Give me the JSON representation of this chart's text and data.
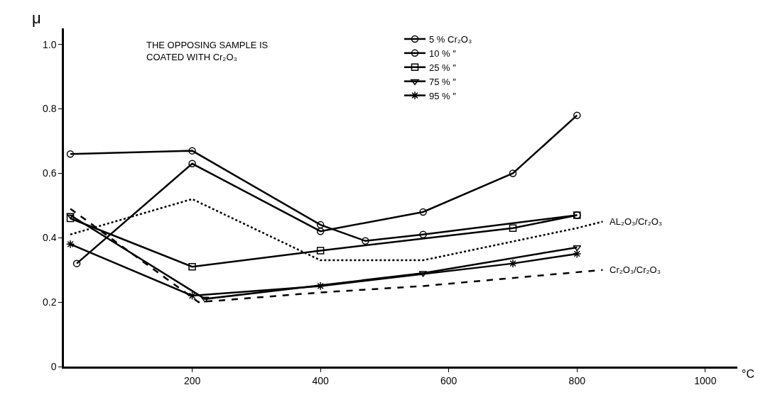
{
  "chart_data": {
    "type": "line",
    "xlabel": "°C",
    "ylabel": "μ",
    "annotations": [
      "THE OPPOSING SAMPLE IS\nCOATED WITH Cr₂O₃"
    ],
    "xlim": [
      0,
      1050
    ],
    "ylim": [
      0,
      1.05
    ],
    "xticks": [
      200,
      400,
      600,
      800,
      1000
    ],
    "yticks": [
      0,
      0.2,
      0.4,
      0.6,
      0.8,
      {
        "value": 1.0,
        "label": "1.0"
      }
    ],
    "legend": "top",
    "line_style": "solid",
    "series": [
      {
        "name": "5 % Cr₂O₃",
        "color": "#000000",
        "marker": "circle",
        "x": [
          20,
          200,
          400,
          560,
          700,
          800
        ],
        "values": [
          0.32,
          0.63,
          0.42,
          0.48,
          0.6,
          0.78
        ]
      },
      {
        "name": "10 % ″",
        "color": "#000000",
        "marker": "circle",
        "x": [
          10,
          200,
          400,
          470,
          560,
          800
        ],
        "values": [
          0.66,
          0.67,
          0.44,
          0.39,
          0.41,
          0.47
        ]
      },
      {
        "name": "25 % ″",
        "color": "#000000",
        "marker": "square",
        "x": [
          10,
          200,
          400,
          700,
          800
        ],
        "values": [
          0.46,
          0.31,
          0.36,
          0.43,
          0.47
        ]
      },
      {
        "name": "75 % ″",
        "color": "#000000",
        "marker": "triangle",
        "x": [
          10,
          220,
          560,
          800
        ],
        "values": [
          0.47,
          0.21,
          0.29,
          0.37
        ]
      },
      {
        "name": "95 % ″",
        "color": "#000000",
        "marker": "cross",
        "x": [
          10,
          200,
          400,
          700,
          800
        ],
        "values": [
          0.38,
          0.22,
          0.25,
          0.32,
          0.35
        ]
      },
      {
        "name": "AL₂O₃/Cr₂O₃",
        "color": "#000000",
        "marker": "none",
        "line_style": "dotted",
        "x": [
          10,
          200,
          400,
          560,
          800,
          840
        ],
        "values": [
          0.41,
          0.52,
          0.33,
          0.33,
          0.43,
          0.45
        ]
      },
      {
        "name": "Cr₂O₃/Cr₂O₃",
        "color": "#000000",
        "marker": "none",
        "line_style": "dashed",
        "x": [
          10,
          210,
          400,
          560,
          840
        ],
        "values": [
          0.49,
          0.2,
          0.23,
          0.25,
          0.3
        ]
      }
    ]
  }
}
